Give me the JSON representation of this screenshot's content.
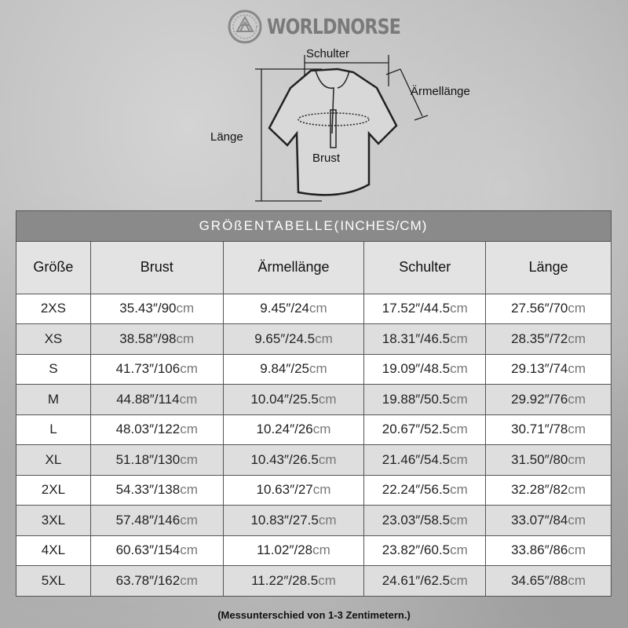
{
  "brand": {
    "name": "WORLDNORSE",
    "logo_icon": "valknut-icon"
  },
  "diagram": {
    "shoulder": "Schulter",
    "sleeve": "Ärmellänge",
    "length": "Länge",
    "chest": "Brust"
  },
  "table": {
    "title": "GRÖßENTABELLE(",
    "title_units": "INCHES/CM",
    "title_close": ")",
    "headers": [
      "Größe",
      "Brust",
      "Ärmellänge",
      "Schulter",
      "Länge"
    ],
    "unit": "cm",
    "rows": [
      {
        "size": "2XS",
        "values": [
          "35.43″/90",
          "9.45″/24",
          "17.52″/44.5",
          "27.56″/70"
        ]
      },
      {
        "size": "XS",
        "values": [
          "38.58″/98",
          "9.65″/24.5",
          "18.31″/46.5",
          "28.35″/72"
        ]
      },
      {
        "size": "S",
        "values": [
          "41.73″/106",
          "9.84″/25",
          "19.09″/48.5",
          "29.13″/74"
        ]
      },
      {
        "size": "M",
        "values": [
          "44.88″/114",
          "10.04″/25.5",
          "19.88″/50.5",
          "29.92″/76"
        ]
      },
      {
        "size": "L",
        "values": [
          "48.03″/122",
          "10.24″/26",
          "20.67″/52.5",
          "30.71″/78"
        ]
      },
      {
        "size": "XL",
        "values": [
          "51.18″/130",
          "10.43″/26.5",
          "21.46″/54.5",
          "31.50″/80"
        ]
      },
      {
        "size": "2XL",
        "values": [
          "54.33″/138",
          "10.63″/27",
          "22.24″/56.5",
          "32.28″/82"
        ]
      },
      {
        "size": "3XL",
        "values": [
          "57.48″/146",
          "10.83″/27.5",
          "23.03″/58.5",
          "33.07″/84"
        ]
      },
      {
        "size": "4XL",
        "values": [
          "60.63″/154",
          "11.02″/28",
          "23.82″/60.5",
          "33.86″/86"
        ]
      },
      {
        "size": "5XL",
        "values": [
          "63.78″/162",
          "11.22″/28.5",
          "24.61″/62.5",
          "34.65″/88"
        ]
      }
    ]
  },
  "note": "(Messunterschied von 1-3 Zentimetern.)",
  "colors": {
    "title_bar": "#8a8a8a",
    "header_bg": "#e3e3e3",
    "row_alt": "#dedede",
    "unit_text": "#777777"
  }
}
